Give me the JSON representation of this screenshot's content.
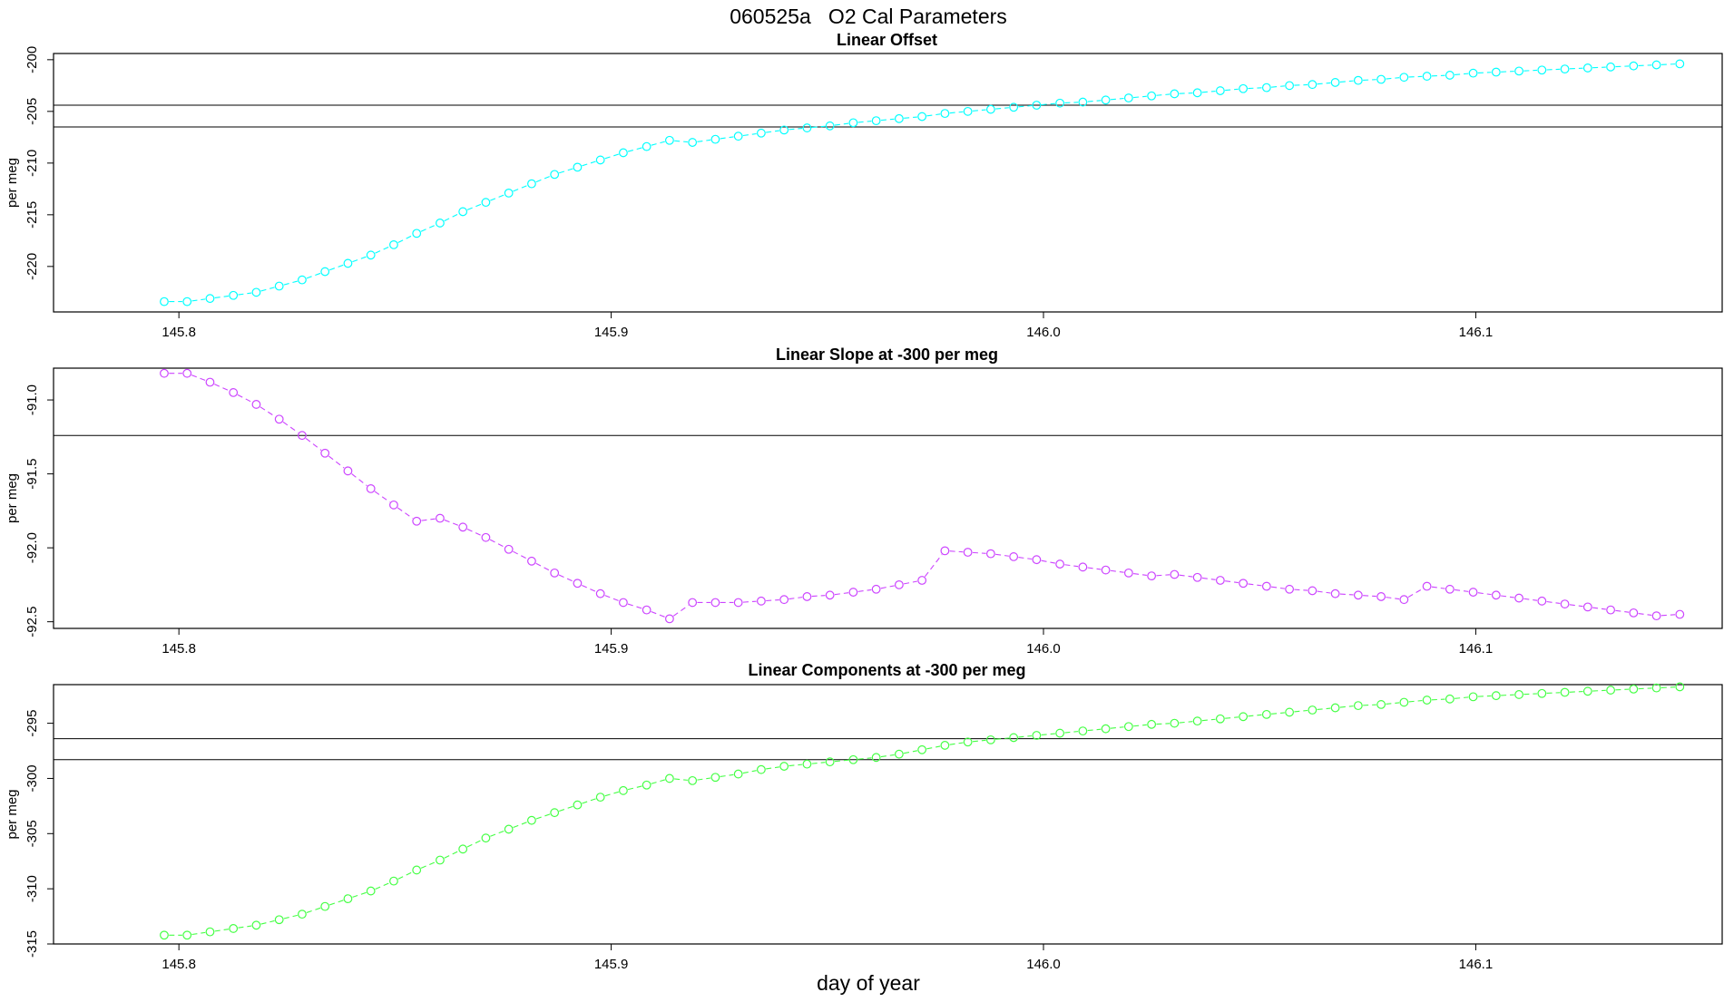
{
  "figure_title": "060525a   O2 Cal Parameters",
  "xlabel": "day of year",
  "chart_data": [
    {
      "type": "line",
      "title": "Linear Offset",
      "ylabel": "per meg",
      "xlabel": "",
      "xlim": [
        145.771,
        146.157
      ],
      "ylim": [
        -224.4,
        -199.4
      ],
      "xticks": [
        145.8,
        145.9,
        146.0,
        146.1
      ],
      "xtick_labels": [
        "145.8",
        "145.9",
        "146.0",
        "146.1"
      ],
      "yticks": [
        -200,
        -205,
        -210,
        -215,
        -220
      ],
      "ytick_labels": [
        "-200",
        "-205",
        "-210",
        "-215",
        "-220"
      ],
      "hlines": [
        -204.4,
        -206.5
      ],
      "grid": false,
      "series": [
        {
          "color": "#00ffff",
          "marker": "circle",
          "line": "dashed",
          "x": [
            145.7966,
            145.8019,
            145.8072,
            145.8126,
            145.8179,
            145.8232,
            145.8285,
            145.8338,
            145.8391,
            145.8444,
            145.8497,
            145.855,
            145.8604,
            145.8657,
            145.871,
            145.8763,
            145.8816,
            145.8869,
            145.8922,
            145.8975,
            145.9028,
            145.9082,
            145.9135,
            145.9188,
            145.9241,
            145.9294,
            145.9347,
            145.94,
            145.9453,
            145.9506,
            145.956,
            145.9613,
            145.9666,
            145.9719,
            145.9772,
            145.9825,
            145.9878,
            145.9931,
            145.9984,
            146.0038,
            146.0091,
            146.0144,
            146.0197,
            146.025,
            146.0303,
            146.0356,
            146.0409,
            146.0462,
            146.0516,
            146.0569,
            146.0622,
            146.0675,
            146.0728,
            146.0781,
            146.0834,
            146.0887,
            146.094,
            146.0994,
            146.1047,
            146.11,
            146.1153,
            146.1206,
            146.1259,
            146.1312,
            146.1365,
            146.1418,
            146.1472
          ],
          "y": [
            -223.4,
            -223.4,
            -223.1,
            -222.8,
            -222.5,
            -221.9,
            -221.3,
            -220.5,
            -219.7,
            -218.9,
            -217.9,
            -216.8,
            -215.8,
            -214.7,
            -213.8,
            -212.9,
            -212.0,
            -211.1,
            -210.4,
            -209.7,
            -209.0,
            -208.4,
            -207.8,
            -208.0,
            -207.7,
            -207.4,
            -207.1,
            -206.8,
            -206.6,
            -206.4,
            -206.1,
            -205.9,
            -205.7,
            -205.5,
            -205.2,
            -205.0,
            -204.8,
            -204.6,
            -204.4,
            -204.2,
            -204.1,
            -203.9,
            -203.7,
            -203.5,
            -203.3,
            -203.2,
            -203.0,
            -202.8,
            -202.7,
            -202.5,
            -202.4,
            -202.2,
            -202.0,
            -201.9,
            -201.7,
            -201.6,
            -201.5,
            -201.3,
            -201.2,
            -201.1,
            -201.0,
            -200.9,
            -200.8,
            -200.7,
            -200.6,
            -200.5,
            -200.4
          ]
        }
      ]
    },
    {
      "type": "line",
      "title": "Linear Slope at -300 per meg",
      "ylabel": "per meg",
      "xlabel": "",
      "xlim": [
        145.771,
        146.157
      ],
      "ylim": [
        -92.545,
        -90.785
      ],
      "xticks": [
        145.8,
        145.9,
        146.0,
        146.1
      ],
      "xtick_labels": [
        "145.8",
        "145.9",
        "146.0",
        "146.1"
      ],
      "yticks": [
        -91.0,
        -91.5,
        -92.0,
        -92.5
      ],
      "ytick_labels": [
        "-91.0",
        "-91.5",
        "-92.0",
        "-92.5"
      ],
      "hlines": [
        -91.24
      ],
      "grid": false,
      "series": [
        {
          "color": "#cc44ff",
          "marker": "circle",
          "line": "dashed",
          "x": [
            145.7966,
            145.8019,
            145.8072,
            145.8126,
            145.8179,
            145.8232,
            145.8285,
            145.8338,
            145.8391,
            145.8444,
            145.8497,
            145.855,
            145.8604,
            145.8657,
            145.871,
            145.8763,
            145.8816,
            145.8869,
            145.8922,
            145.8975,
            145.9028,
            145.9082,
            145.9135,
            145.9188,
            145.9241,
            145.9294,
            145.9347,
            145.94,
            145.9453,
            145.9506,
            145.956,
            145.9613,
            145.9666,
            145.9719,
            145.9772,
            145.9825,
            145.9878,
            145.9931,
            145.9984,
            146.0038,
            146.0091,
            146.0144,
            146.0197,
            146.025,
            146.0303,
            146.0356,
            146.0409,
            146.0462,
            146.0516,
            146.0569,
            146.0622,
            146.0675,
            146.0728,
            146.0781,
            146.0834,
            146.0887,
            146.094,
            146.0994,
            146.1047,
            146.11,
            146.1153,
            146.1206,
            146.1259,
            146.1312,
            146.1365,
            146.1418,
            146.1472
          ],
          "y": [
            -90.82,
            -90.82,
            -90.88,
            -90.95,
            -91.03,
            -91.13,
            -91.24,
            -91.36,
            -91.48,
            -91.6,
            -91.71,
            -91.82,
            -91.8,
            -91.86,
            -91.93,
            -92.01,
            -92.09,
            -92.17,
            -92.24,
            -92.31,
            -92.37,
            -92.42,
            -92.48,
            -92.37,
            -92.37,
            -92.37,
            -92.36,
            -92.35,
            -92.33,
            -92.32,
            -92.3,
            -92.28,
            -92.25,
            -92.22,
            -92.02,
            -92.03,
            -92.04,
            -92.06,
            -92.08,
            -92.11,
            -92.13,
            -92.15,
            -92.17,
            -92.19,
            -92.18,
            -92.2,
            -92.22,
            -92.24,
            -92.26,
            -92.28,
            -92.29,
            -92.31,
            -92.32,
            -92.33,
            -92.35,
            -92.26,
            -92.28,
            -92.3,
            -92.32,
            -92.34,
            -92.36,
            -92.38,
            -92.4,
            -92.42,
            -92.44,
            -92.46,
            -92.45
          ]
        }
      ]
    },
    {
      "type": "line",
      "title": "Linear Components at -300 per meg",
      "ylabel": "per meg",
      "xlabel": "",
      "xlim": [
        145.771,
        146.157
      ],
      "ylim": [
        -315.0,
        -291.5
      ],
      "xticks": [
        145.8,
        145.9,
        146.0,
        146.1
      ],
      "xtick_labels": [
        "145.8",
        "145.9",
        "146.0",
        "146.1"
      ],
      "yticks": [
        -295,
        -300,
        -305,
        -310,
        -315
      ],
      "ytick_labels": [
        "-295",
        "-300",
        "-305",
        "-310",
        "-315"
      ],
      "hlines": [
        -296.4,
        -298.3
      ],
      "grid": false,
      "series": [
        {
          "color": "#44ff44",
          "marker": "circle",
          "line": "dashed",
          "x": [
            145.7966,
            145.8019,
            145.8072,
            145.8126,
            145.8179,
            145.8232,
            145.8285,
            145.8338,
            145.8391,
            145.8444,
            145.8497,
            145.855,
            145.8604,
            145.8657,
            145.871,
            145.8763,
            145.8816,
            145.8869,
            145.8922,
            145.8975,
            145.9028,
            145.9082,
            145.9135,
            145.9188,
            145.9241,
            145.9294,
            145.9347,
            145.94,
            145.9453,
            145.9506,
            145.956,
            145.9613,
            145.9666,
            145.9719,
            145.9772,
            145.9825,
            145.9878,
            145.9931,
            145.9984,
            146.0038,
            146.0091,
            146.0144,
            146.0197,
            146.025,
            146.0303,
            146.0356,
            146.0409,
            146.0462,
            146.0516,
            146.0569,
            146.0622,
            146.0675,
            146.0728,
            146.0781,
            146.0834,
            146.0887,
            146.094,
            146.0994,
            146.1047,
            146.11,
            146.1153,
            146.1206,
            146.1259,
            146.1312,
            146.1365,
            146.1418,
            146.1472
          ],
          "y": [
            -314.2,
            -314.2,
            -313.9,
            -313.6,
            -313.3,
            -312.8,
            -312.3,
            -311.6,
            -310.9,
            -310.2,
            -309.3,
            -308.3,
            -307.4,
            -306.4,
            -305.4,
            -304.6,
            -303.8,
            -303.1,
            -302.4,
            -301.7,
            -301.1,
            -300.6,
            -300.0,
            -300.2,
            -299.9,
            -299.6,
            -299.2,
            -298.9,
            -298.7,
            -298.5,
            -298.3,
            -298.1,
            -297.8,
            -297.4,
            -297.0,
            -296.7,
            -296.5,
            -296.3,
            -296.1,
            -295.9,
            -295.7,
            -295.5,
            -295.3,
            -295.1,
            -295.0,
            -294.8,
            -294.6,
            -294.4,
            -294.2,
            -294.0,
            -293.8,
            -293.6,
            -293.4,
            -293.3,
            -293.1,
            -292.9,
            -292.8,
            -292.6,
            -292.5,
            -292.4,
            -292.3,
            -292.2,
            -292.1,
            -292.0,
            -291.9,
            -291.8,
            -291.7
          ]
        }
      ]
    }
  ]
}
